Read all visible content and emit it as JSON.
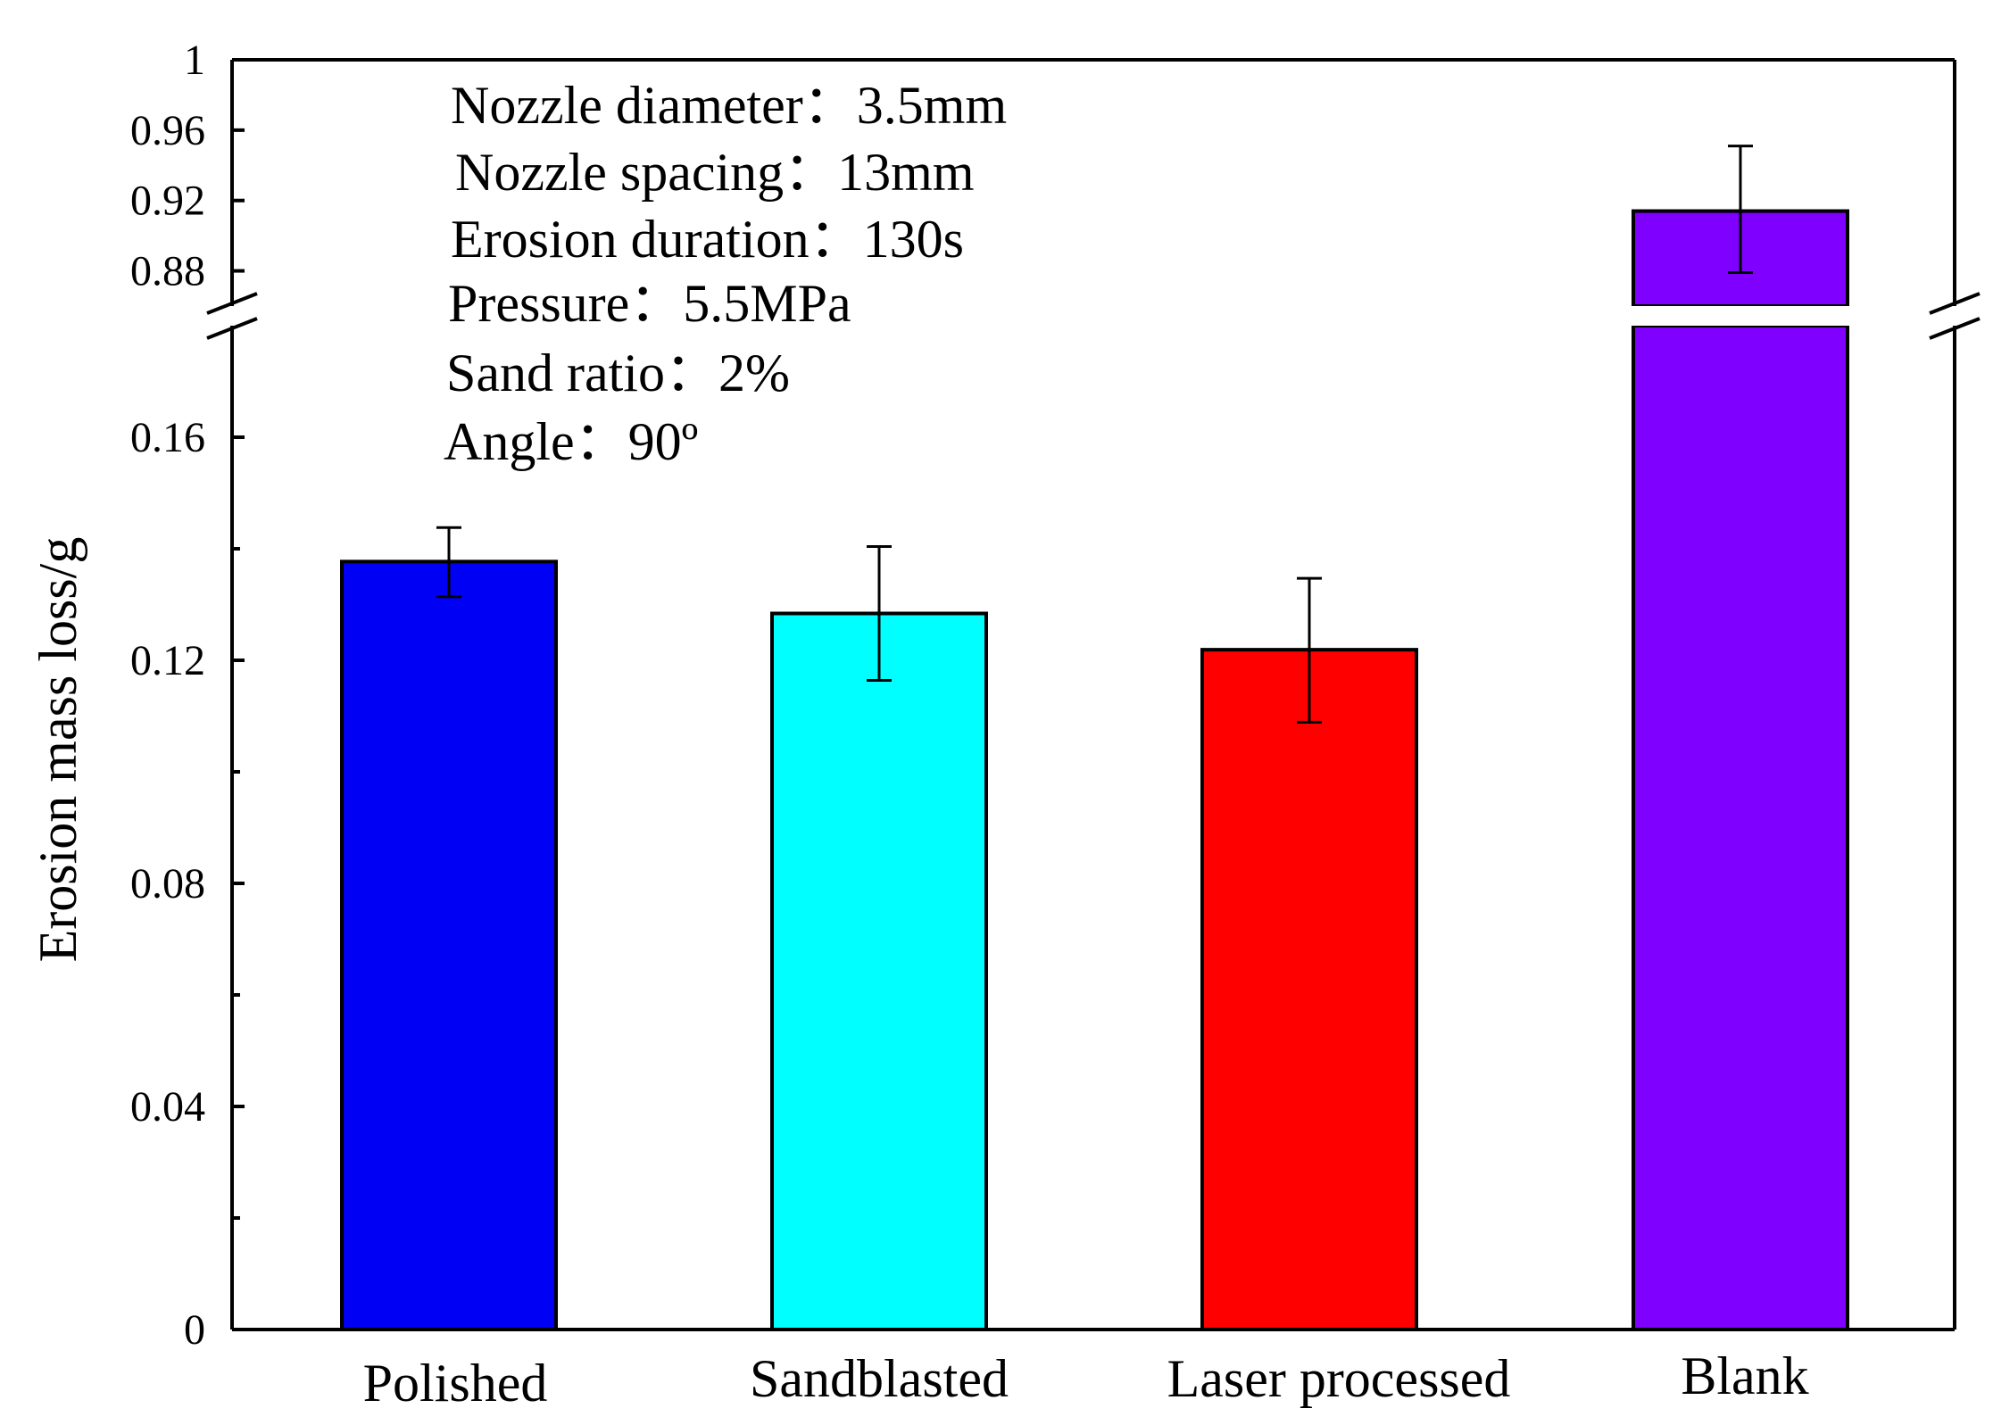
{
  "chart_data": {
    "type": "bar",
    "ylabel": "Erosion mass loss/g",
    "xlabel": "",
    "categories": [
      "Polished",
      "Sandblasted",
      "Laser processed",
      "Blank"
    ],
    "values": [
      0.1377,
      0.1284,
      0.1219,
      0.914
    ],
    "errors": [
      [
        0.1314,
        0.1438
      ],
      [
        0.1164,
        0.1404
      ],
      [
        0.1089,
        0.1347
      ],
      [
        0.879,
        0.951
      ]
    ],
    "colors": [
      "#0000f5",
      "#00ffff",
      "#ff0000",
      "#8000ff"
    ],
    "axis_break": {
      "lower_range": [
        0,
        0.18
      ],
      "upper_range": [
        0.86,
        1.0
      ]
    },
    "yticks_lower": [
      "0",
      "0.04",
      "0.08",
      "0.12",
      "0.16"
    ],
    "yticks_upper": [
      "0.88",
      "0.92",
      "0.96",
      "1"
    ],
    "annotations": [
      "Nozzle diameter：3.5mm",
      "Nozzle spacing：13mm",
      "Erosion duration：130s",
      "Pressure：5.5MPa",
      "Sand ratio：2%",
      "Angle：90º"
    ]
  }
}
